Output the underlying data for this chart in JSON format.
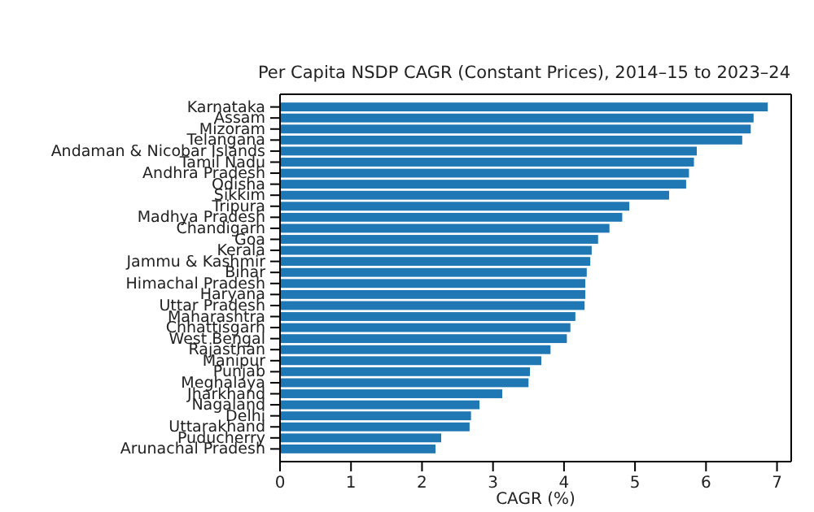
{
  "chart_data": {
    "type": "bar",
    "orientation": "horizontal",
    "title": "Per Capita NSDP CAGR (Constant Prices), 2014–15 to 2023–24",
    "xlabel": "CAGR (%)",
    "categories": [
      "Karnataka",
      "Assam",
      "Mizoram",
      "Telangana",
      "Andaman & Nicobar Islands",
      "Tamil Nadu",
      "Andhra Pradesh",
      "Odisha",
      "Sikkim",
      "Tripura",
      "Madhya Pradesh",
      "Chandigarh",
      "Goa",
      "Kerala",
      "Jammu & Kashmir",
      "Bihar",
      "Himachal Pradesh",
      "Haryana",
      "Uttar Pradesh",
      "Maharashtra",
      "Chhattisgarh",
      "West Bengal",
      "Rajasthan",
      "Manipur",
      "Punjab",
      "Meghalaya",
      "Jharkhand",
      "Nagaland",
      "Delhi",
      "Uttarakhand",
      "Puducherry",
      "Arunachal Pradesh"
    ],
    "values": [
      6.87,
      6.67,
      6.63,
      6.51,
      5.87,
      5.83,
      5.76,
      5.72,
      5.48,
      4.92,
      4.82,
      4.64,
      4.48,
      4.39,
      4.37,
      4.32,
      4.3,
      4.3,
      4.29,
      4.16,
      4.09,
      4.04,
      3.81,
      3.68,
      3.52,
      3.5,
      3.13,
      2.81,
      2.69,
      2.67,
      2.27,
      2.19
    ],
    "color": "#1f77b4",
    "xlim": [
      0,
      7.2
    ],
    "xticks": [
      0,
      1,
      2,
      3,
      4,
      5,
      6,
      7
    ],
    "grid": false
  }
}
